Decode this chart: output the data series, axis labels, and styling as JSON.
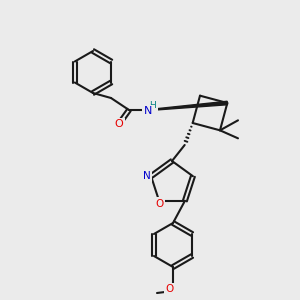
{
  "background_color": "#ebebeb",
  "bond_color": "#1a1a1a",
  "bond_lw": 1.5,
  "atom_colors": {
    "O": "#e60000",
    "N": "#0000cc",
    "H_on_N": "#008080",
    "C": "#1a1a1a"
  },
  "font_size_atom": 7.5,
  "font_size_label": 6.5
}
